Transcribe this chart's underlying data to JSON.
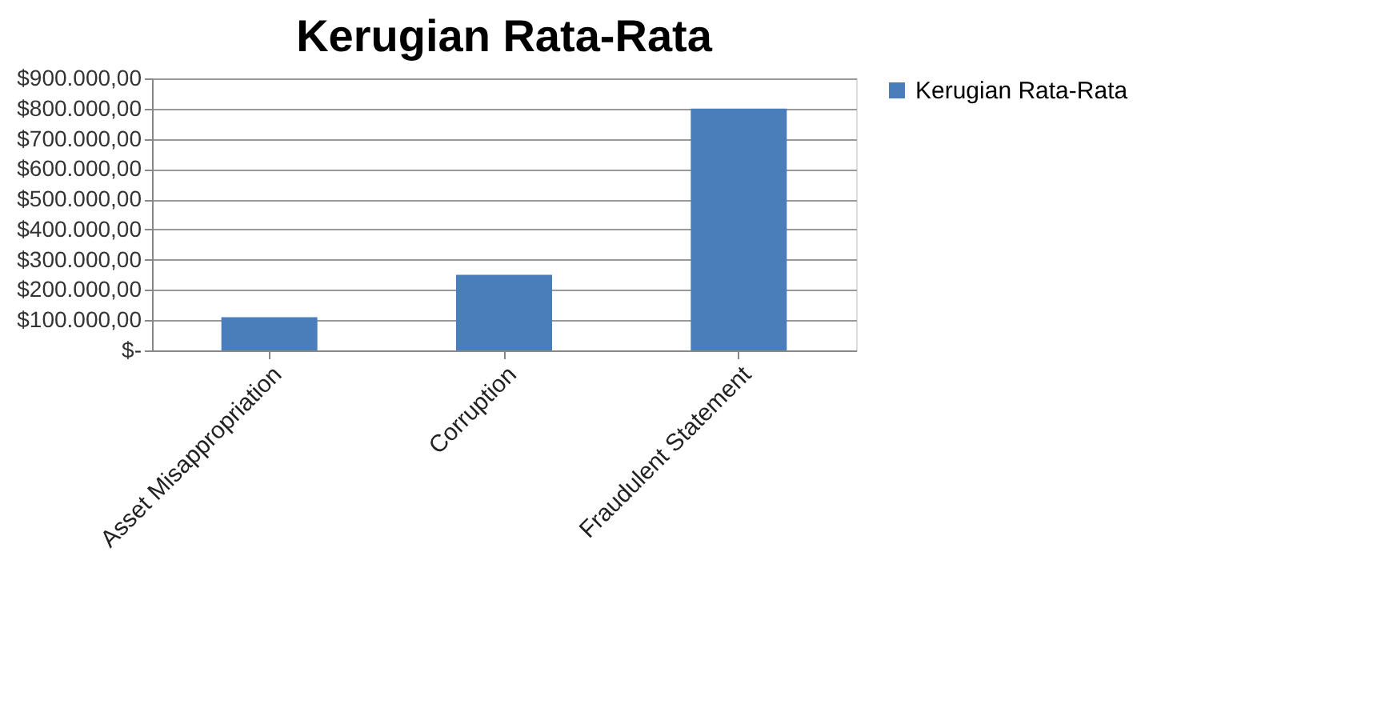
{
  "chart_data": {
    "type": "bar",
    "title": "Kerugian Rata-Rata",
    "categories": [
      "Asset Misappropriation",
      "Corruption",
      "Fraudulent Statement"
    ],
    "series": [
      {
        "name": "Kerugian Rata-Rata",
        "color": "#4a7ebb",
        "values": [
          110000,
          250000,
          800000
        ]
      }
    ],
    "ylim": [
      0,
      900000
    ],
    "yticks": [
      {
        "value": 0,
        "label": "$-"
      },
      {
        "value": 100000,
        "label": "$100.000,00"
      },
      {
        "value": 200000,
        "label": "$200.000,00"
      },
      {
        "value": 300000,
        "label": "$300.000,00"
      },
      {
        "value": 400000,
        "label": "$400.000,00"
      },
      {
        "value": 500000,
        "label": "$500.000,00"
      },
      {
        "value": 600000,
        "label": "$600.000,00"
      },
      {
        "value": 700000,
        "label": "$700.000,00"
      },
      {
        "value": 800000,
        "label": "$800.000,00"
      },
      {
        "value": 900000,
        "label": "$900.000,00"
      }
    ],
    "grid": "y",
    "legend": "right"
  }
}
